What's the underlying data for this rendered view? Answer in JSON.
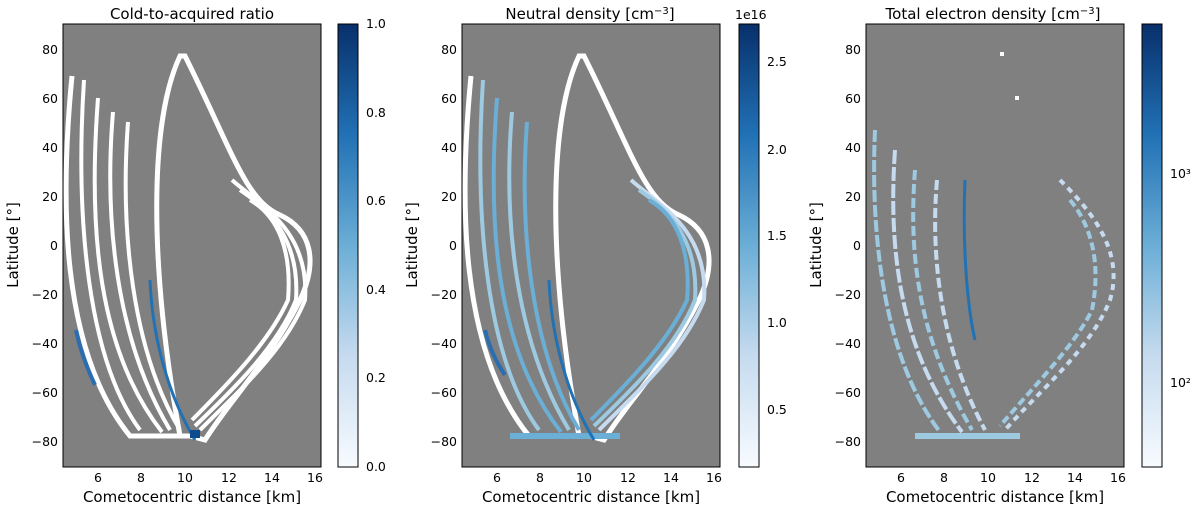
{
  "chart_data": [
    {
      "type": "heatmap",
      "title": "Cold-to-acquired ratio",
      "xlabel": "Cometocentric distance [km]",
      "ylabel": "Latitude [°]",
      "xlim": [
        4.4,
        16.3
      ],
      "ylim": [
        -90,
        90
      ],
      "x_ticks": [
        "6",
        "8",
        "10",
        "12",
        "14",
        "16"
      ],
      "y_ticks": [
        "80",
        "60",
        "40",
        "20",
        "0",
        "−20",
        "−40",
        "−60",
        "−80"
      ],
      "background": "#808080",
      "colorbar": {
        "scale": "linear",
        "range": [
          0,
          1
        ],
        "ticks": [
          "0.0",
          "0.2",
          "0.4",
          "0.6",
          "0.8",
          "1.0"
        ],
        "offset_text": "",
        "colors": [
          "#f7fbff",
          "#c6dbef",
          "#6baed6",
          "#2171b5",
          "#08306b"
        ]
      },
      "data_description_note_free": true,
      "features": [
        {
          "x": 4.7,
          "y": -40,
          "value": 0.65
        },
        {
          "x": 5.3,
          "y": -58,
          "value": 0.9
        },
        {
          "x": 9.6,
          "y": -45,
          "value": 0.7
        },
        {
          "x": 10.4,
          "y": -82,
          "value": 0.95
        }
      ]
    },
    {
      "type": "heatmap",
      "title": "Neutral density [cm⁻³]",
      "xlabel": "Cometocentric distance [km]",
      "ylabel": "Latitude [°]",
      "xlim": [
        4.4,
        16.3
      ],
      "ylim": [
        -90,
        90
      ],
      "x_ticks": [
        "6",
        "8",
        "10",
        "12",
        "14",
        "16"
      ],
      "y_ticks": [
        "80",
        "60",
        "40",
        "20",
        "0",
        "−20",
        "−40",
        "−60",
        "−80"
      ],
      "background": "#808080",
      "colorbar": {
        "scale": "linear",
        "range": [
          0.15,
          2.7
        ],
        "ticks": [
          "0.5",
          "1.0",
          "1.5",
          "2.0",
          "2.5"
        ],
        "offset_text": "1e16",
        "colors": [
          "#f7fbff",
          "#c6dbef",
          "#6baed6",
          "#2171b5",
          "#08306b"
        ]
      },
      "features": [
        {
          "x": 5.6,
          "y": -50,
          "value": 2.1
        },
        {
          "x": 9.5,
          "y": -60,
          "value": 2.4
        },
        {
          "x": 10.2,
          "y": -80,
          "value": 1.2
        }
      ]
    },
    {
      "type": "heatmap",
      "title": "Total electron density [cm⁻³]",
      "xlabel": "Cometocentric distance [km]",
      "ylabel": "Latitude [°]",
      "xlim": [
        4.4,
        16.3
      ],
      "ylim": [
        -90,
        90
      ],
      "x_ticks": [
        "6",
        "8",
        "10",
        "12",
        "14",
        "16"
      ],
      "y_ticks": [
        "80",
        "60",
        "40",
        "20",
        "0",
        "−20",
        "−40",
        "−60",
        "−80"
      ],
      "background": "#808080",
      "colorbar": {
        "scale": "log",
        "range": [
          40,
          5000
        ],
        "ticks": [
          "10²",
          "10³"
        ],
        "offset_text": "",
        "colors": [
          "#f7fbff",
          "#c6dbef",
          "#6baed6",
          "#2171b5",
          "#08306b"
        ]
      },
      "features": [
        {
          "x": 8.5,
          "y": -30,
          "value": 3000
        },
        {
          "x": 10.0,
          "y": -80,
          "value": 150
        }
      ]
    }
  ]
}
